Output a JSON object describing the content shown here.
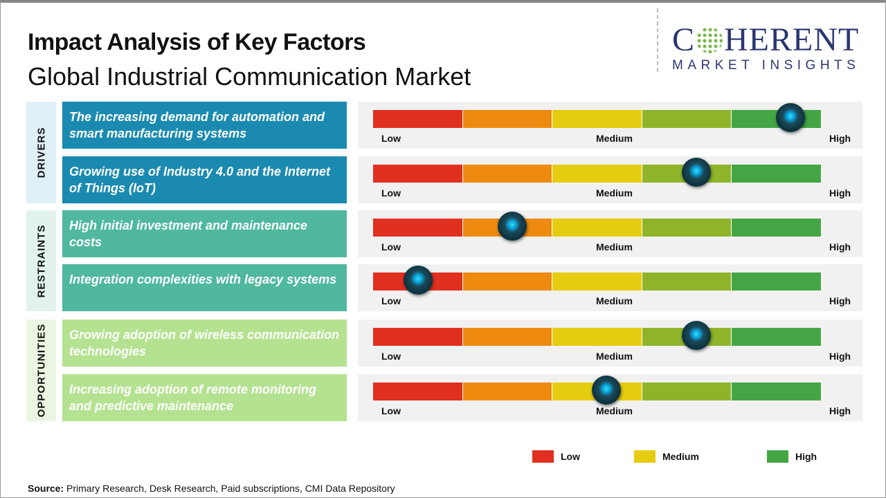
{
  "header": {
    "title": "Impact Analysis of Key Factors",
    "subtitle": "Global Industrial Communication Market"
  },
  "logo": {
    "main_left": "C",
    "main_right": "HERENT",
    "sub": "MARKET INSIGHTS"
  },
  "scale": {
    "low": "Low",
    "medium": "Medium",
    "high": "High",
    "colors": [
      "#e03020",
      "#ee8a10",
      "#e6cc10",
      "#8fb42a",
      "#44a544"
    ]
  },
  "categories": [
    {
      "label": "DRIVERS",
      "color": "#1a8ab0",
      "bg": "#dff0f7"
    },
    {
      "label": "RESTRAINTS",
      "color": "#4fb89e",
      "bg": "#e2f3ee"
    },
    {
      "label": "OPPORTUNITIES",
      "color": "#b4e290",
      "bg": "#ebf6e2"
    }
  ],
  "factors": [
    {
      "category": 0,
      "text": "The increasing demand for automation and smart manufacturing systems",
      "impact": 0.93
    },
    {
      "category": 0,
      "text": "Growing use of Industry 4.0 and the Internet of Things (IoT)",
      "impact": 0.72
    },
    {
      "category": 1,
      "text": "High initial investment and maintenance costs",
      "impact": 0.31
    },
    {
      "category": 1,
      "text": "Integration complexities with legacy systems",
      "impact": 0.1
    },
    {
      "category": 2,
      "text": "Growing adoption of wireless communication technologies",
      "impact": 0.72
    },
    {
      "category": 2,
      "text": "Increasing adoption of remote monitoring and predictive maintenance",
      "impact": 0.52
    }
  ],
  "legend": [
    {
      "label": "Low",
      "color": "#e03020"
    },
    {
      "label": "Medium",
      "color": "#e6cc10"
    },
    {
      "label": "High",
      "color": "#44a544"
    }
  ],
  "source": {
    "label": "Source:",
    "text": " Primary Research, Desk Research, Paid subscriptions, CMI Data Repository"
  }
}
